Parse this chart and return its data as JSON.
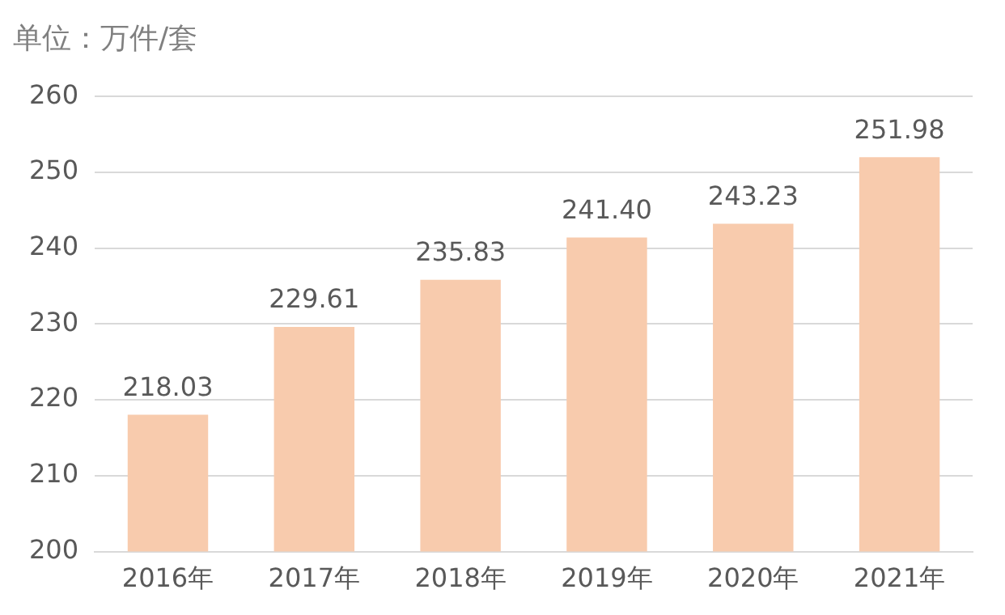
{
  "chart_data": {
    "type": "bar",
    "title": "单位：万件/套",
    "categories": [
      "2016年",
      "2017年",
      "2018年",
      "2019年",
      "2020年",
      "2021年"
    ],
    "values": [
      218.03,
      229.61,
      235.83,
      241.4,
      243.23,
      251.98
    ],
    "color": "#f8cbad",
    "ylim": [
      200,
      260
    ],
    "yticks": [
      200,
      210,
      220,
      230,
      240,
      250,
      260
    ],
    "value_labels": [
      "218.03",
      "229.61",
      "235.83",
      "241.40",
      "243.23",
      "251.98"
    ],
    "grid": "y"
  }
}
